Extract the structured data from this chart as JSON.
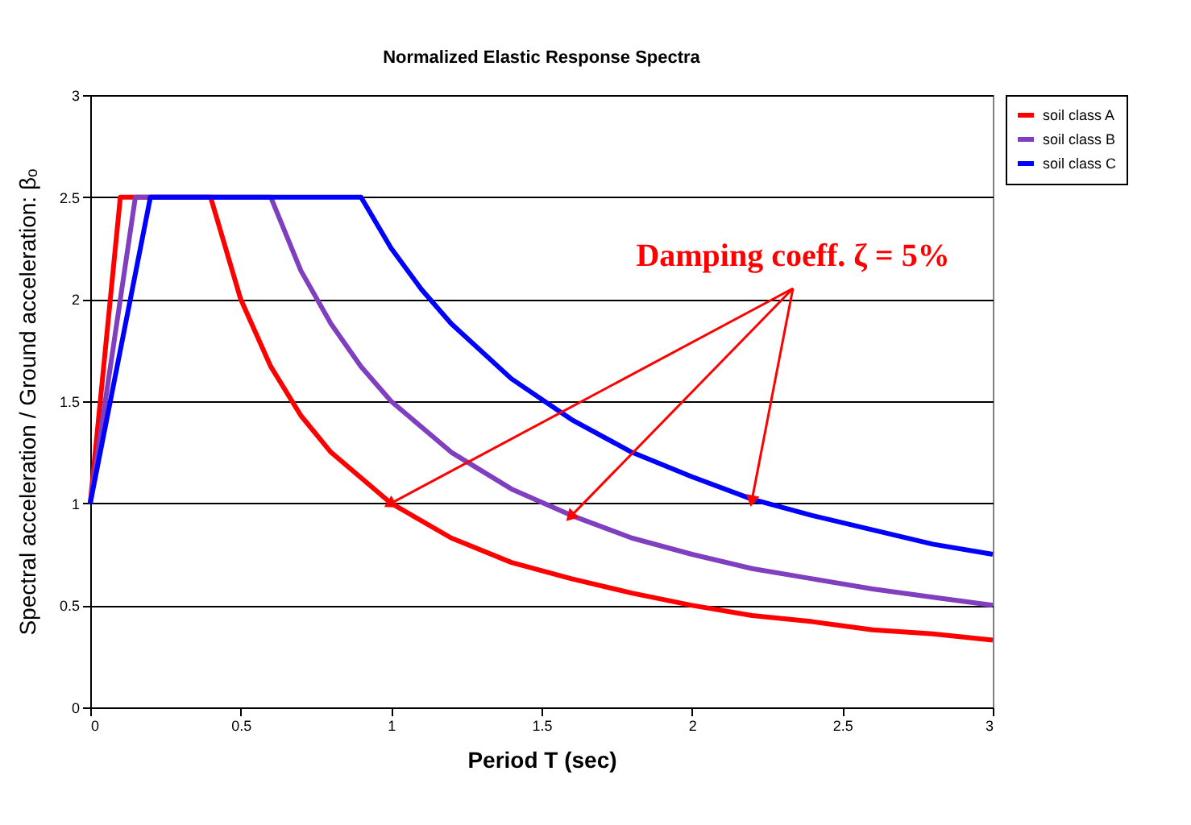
{
  "chart_data": {
    "type": "line",
    "title": "Normalized Elastic Response Spectra",
    "xlabel": "Period T (sec)",
    "ylabel": "Spectral acceleration / Ground acceleration: βₒ",
    "series": [
      {
        "name": "soil class A",
        "color": "#ff0000",
        "x": [
          0,
          0.1,
          0.4,
          0.5,
          0.6,
          0.7,
          0.8,
          1.0,
          1.2,
          1.4,
          1.6,
          1.8,
          2.0,
          2.2,
          2.4,
          2.6,
          2.8,
          3.0
        ],
        "values": [
          1,
          2.5,
          2.5,
          2.0,
          1.67,
          1.43,
          1.25,
          1.0,
          0.83,
          0.71,
          0.63,
          0.56,
          0.5,
          0.45,
          0.42,
          0.38,
          0.36,
          0.33
        ]
      },
      {
        "name": "soil class B",
        "color": "#7f3fbf",
        "x": [
          0,
          0.15,
          0.6,
          0.7,
          0.8,
          0.9,
          1.0,
          1.2,
          1.4,
          1.6,
          1.8,
          2.0,
          2.2,
          2.4,
          2.6,
          2.8,
          3.0
        ],
        "values": [
          1,
          2.5,
          2.5,
          2.14,
          1.88,
          1.67,
          1.5,
          1.25,
          1.07,
          0.94,
          0.83,
          0.75,
          0.68,
          0.63,
          0.58,
          0.54,
          0.5
        ]
      },
      {
        "name": "soil class C",
        "color": "#0000ff",
        "x": [
          0,
          0.2,
          0.9,
          1.0,
          1.1,
          1.2,
          1.4,
          1.6,
          1.8,
          2.0,
          2.2,
          2.4,
          2.6,
          2.8,
          3.0
        ],
        "values": [
          1,
          2.5,
          2.5,
          2.25,
          2.05,
          1.88,
          1.61,
          1.41,
          1.25,
          1.13,
          1.02,
          0.94,
          0.87,
          0.8,
          0.75
        ]
      }
    ],
    "xlim": [
      0,
      3
    ],
    "xticks": [
      0,
      0.5,
      1,
      1.5,
      2,
      2.5,
      3
    ],
    "ylim": [
      0,
      3
    ],
    "yticks": [
      0,
      0.5,
      1,
      1.5,
      2,
      2.5,
      3
    ],
    "grid": "y",
    "legend": "right",
    "marker": "none",
    "line_style": "solid",
    "annotations": [
      {
        "text": "Damping coeff. ζ = 5%",
        "x": 1.0,
        "y": 1.0
      }
    ]
  }
}
